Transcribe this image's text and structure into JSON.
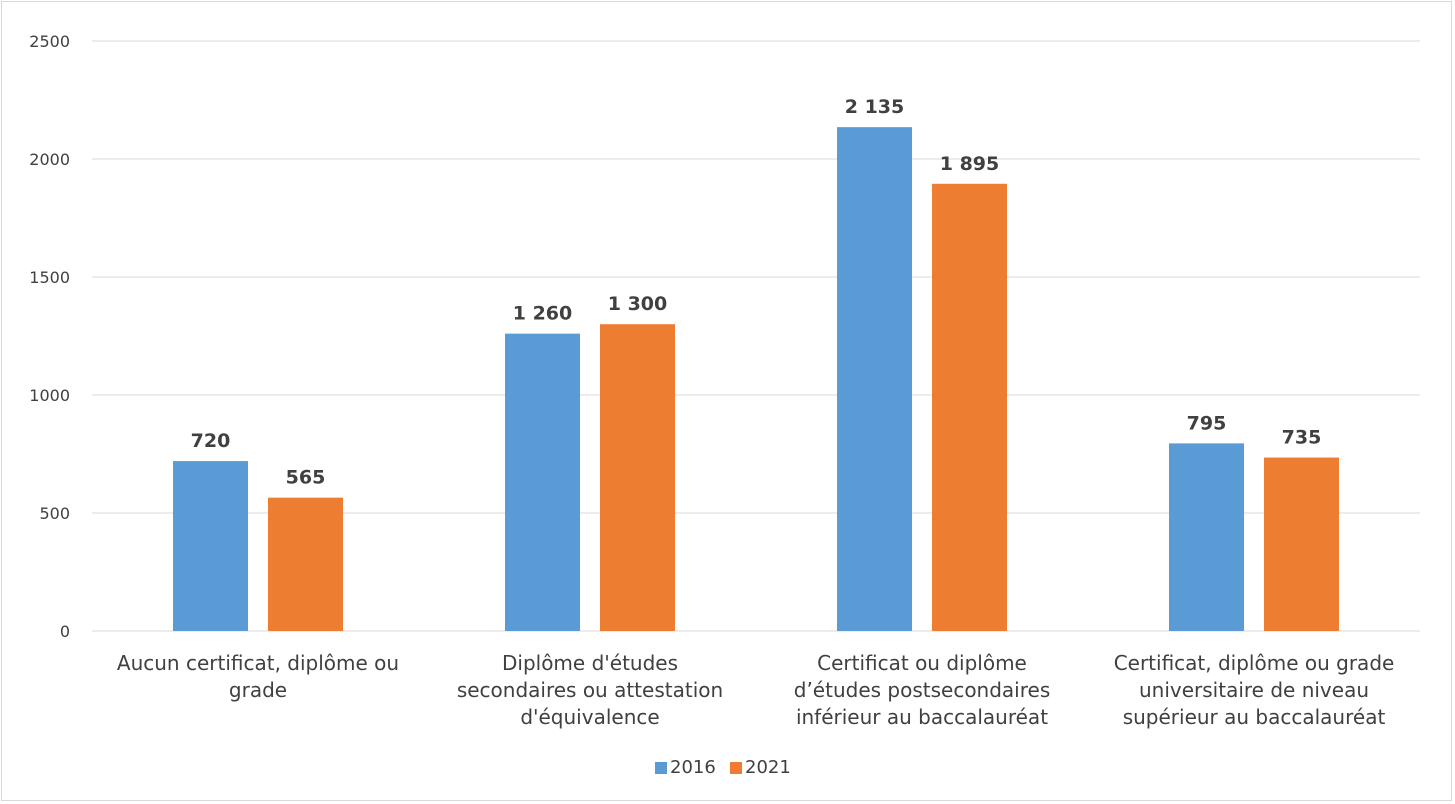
{
  "chart_data": {
    "type": "bar",
    "categories": [
      [
        "Aucun certificat, diplôme ou",
        "grade"
      ],
      [
        "Diplôme d'études",
        "secondaires ou attestation",
        "d'équivalence"
      ],
      [
        "Certificat ou diplôme",
        "d’études postsecondaires",
        "inférieur au baccalauréat"
      ],
      [
        "Certificat, diplôme ou grade",
        "universitaire de niveau",
        "supérieur au baccalauréat"
      ]
    ],
    "series": [
      {
        "name": "2016",
        "values": [
          720,
          1260,
          2135,
          795
        ],
        "labels": [
          "720",
          "1 260",
          "2 135",
          "795"
        ],
        "color": "#5b9bd5"
      },
      {
        "name": "2021",
        "values": [
          565,
          1300,
          1895,
          735
        ],
        "labels": [
          "565",
          "1 300",
          "1 895",
          "735"
        ],
        "color": "#ed7d31"
      }
    ],
    "yticks": [
      "0",
      "500",
      "1000",
      "1500",
      "2000",
      "2500"
    ],
    "ylim": [
      0,
      2500
    ],
    "grid": true,
    "legend_position": "bottom",
    "title": "",
    "xlabel": "",
    "ylabel": ""
  }
}
